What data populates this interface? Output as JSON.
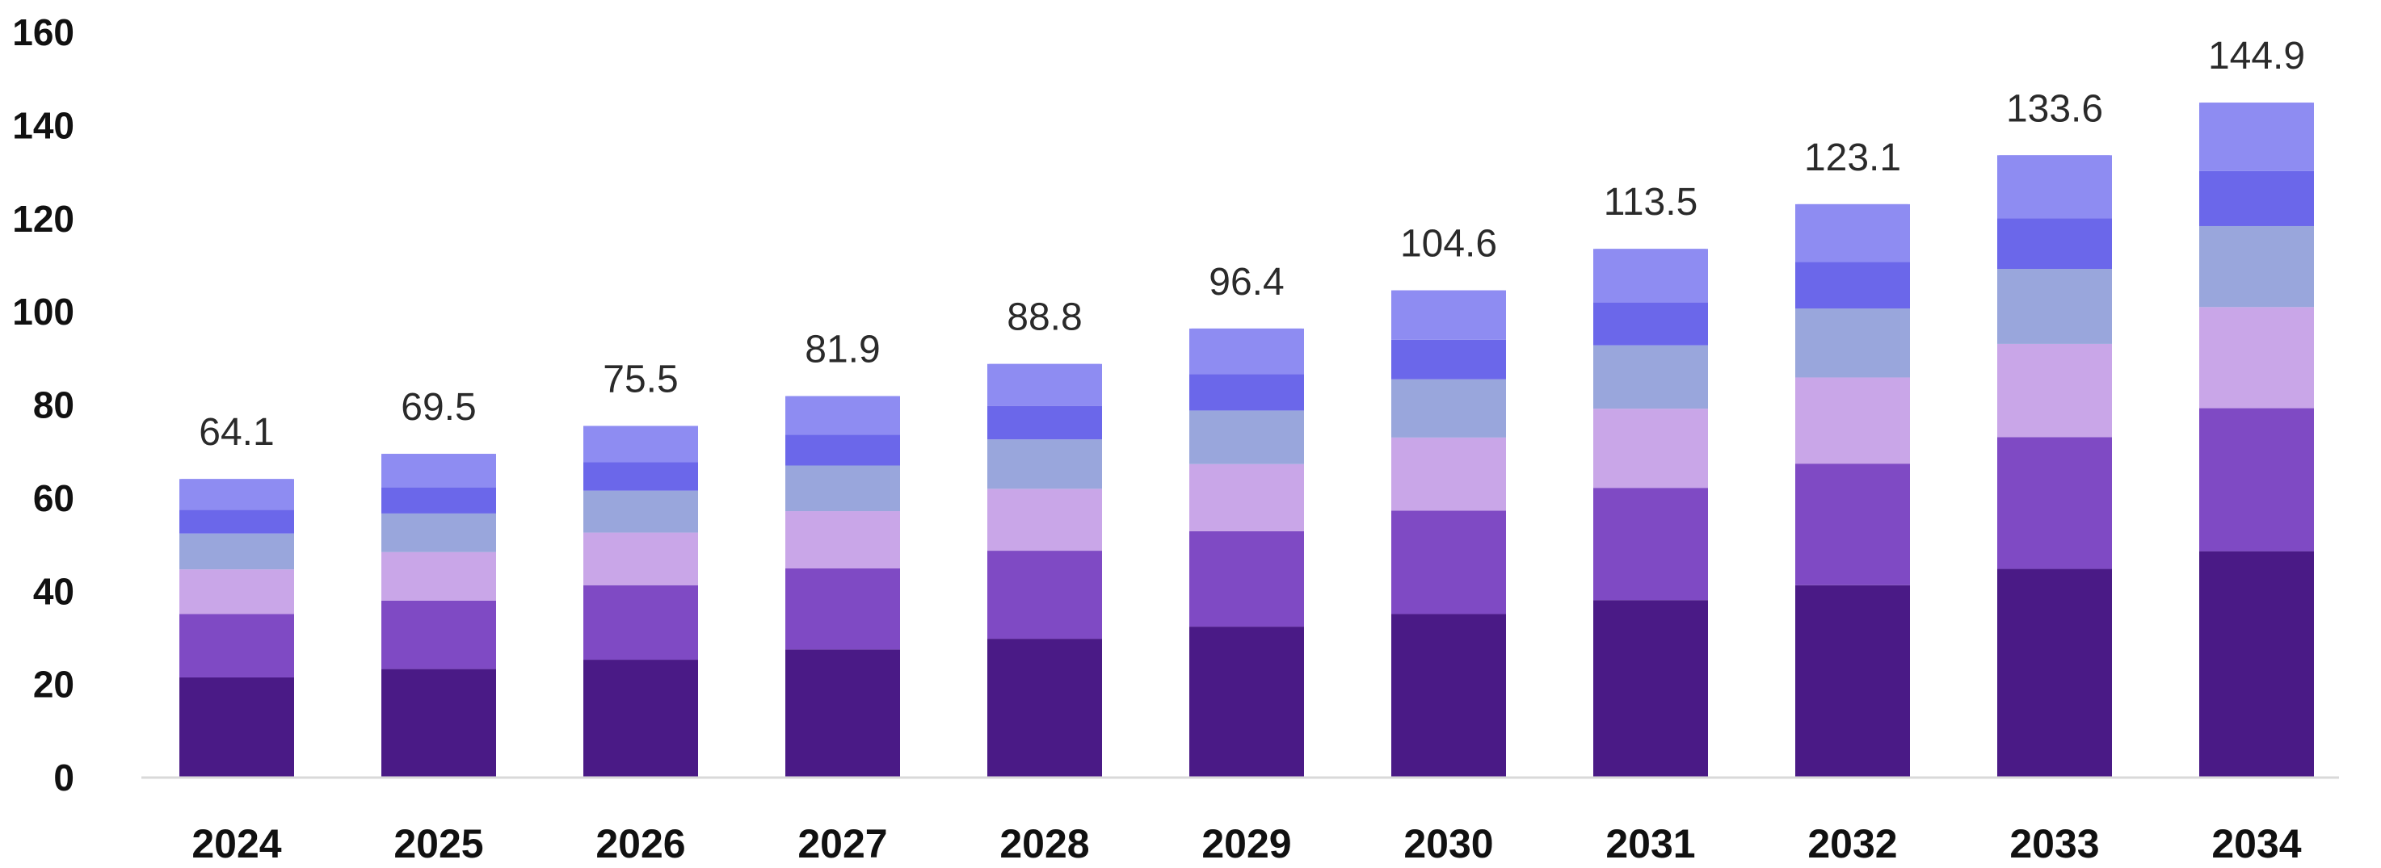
{
  "chart_data": {
    "type": "bar",
    "stacked": true,
    "title": "",
    "xlabel": "",
    "ylabel": "",
    "ylim": [
      0,
      160
    ],
    "yticks": [
      "0",
      "20",
      "40",
      "60",
      "80",
      "100",
      "120",
      "140",
      "160"
    ],
    "grid": false,
    "legend": "none",
    "categories": [
      "2024",
      "2025",
      "2026",
      "2027",
      "2028",
      "2029",
      "2030",
      "2031",
      "2032",
      "2033",
      "2034"
    ],
    "totals_labels": [
      "64.1",
      "69.5",
      "75.5",
      "81.9",
      "88.8",
      "96.4",
      "104.6",
      "113.5",
      "123.1",
      "133.6",
      "144.9"
    ],
    "series": [
      {
        "color": "#4a1a86",
        "values": [
          21.5,
          23.3,
          25.3,
          27.5,
          29.8,
          32.4,
          35.1,
          38.1,
          41.3,
          44.8,
          48.6
        ]
      },
      {
        "color": "#7f4ac4",
        "values": [
          13.6,
          14.7,
          16.0,
          17.4,
          18.9,
          20.5,
          22.2,
          24.1,
          26.1,
          28.3,
          30.7
        ]
      },
      {
        "color": "#c9a6e8",
        "values": [
          9.6,
          10.4,
          11.3,
          12.3,
          13.3,
          14.4,
          15.7,
          17.0,
          18.5,
          20.0,
          21.7
        ]
      },
      {
        "color": "#99a6dc",
        "values": [
          7.7,
          8.3,
          9.0,
          9.8,
          10.6,
          11.5,
          12.5,
          13.6,
          14.8,
          16.1,
          17.4
        ]
      },
      {
        "color": "#6b67ea",
        "values": [
          5.1,
          5.6,
          6.1,
          6.6,
          7.2,
          7.8,
          8.5,
          9.2,
          10.0,
          10.9,
          11.8
        ]
      },
      {
        "color": "#8e8cf2",
        "values": [
          6.6,
          7.2,
          7.8,
          8.3,
          9.0,
          9.8,
          10.6,
          11.5,
          12.4,
          13.5,
          14.7
        ]
      }
    ]
  }
}
